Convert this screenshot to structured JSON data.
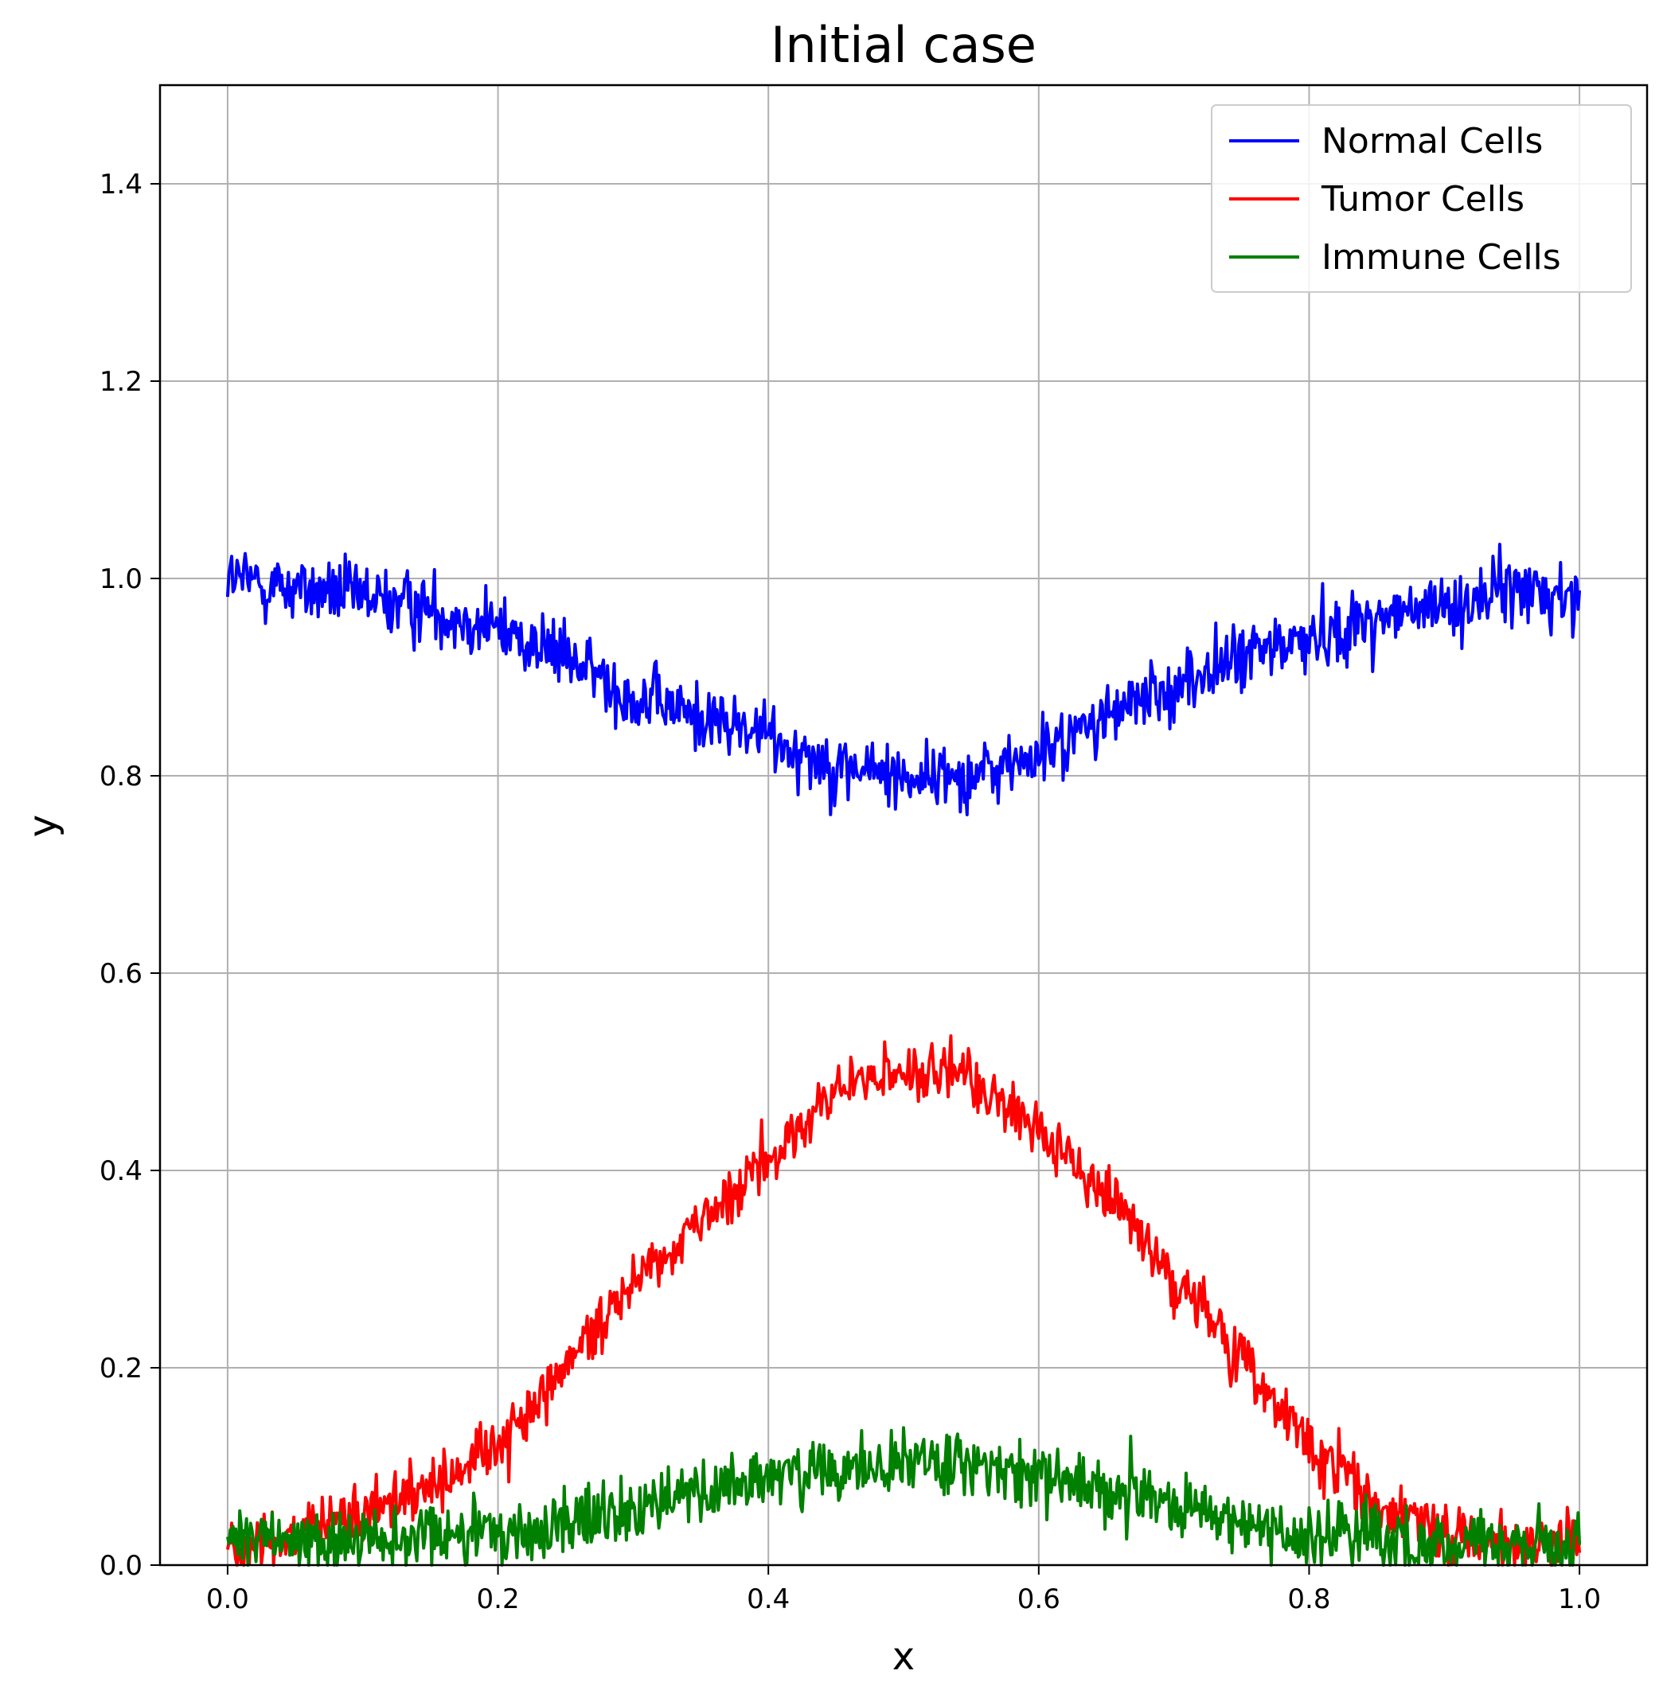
{
  "chart_data": {
    "type": "line",
    "title": "Initial case",
    "xlabel": "x",
    "ylabel": "y",
    "xlim": [
      -0.05,
      1.05
    ],
    "ylim": [
      0.0,
      1.5
    ],
    "grid": true,
    "legend_position": "top-right",
    "x_ticks": [
      "0.0",
      "0.2",
      "0.4",
      "0.6",
      "0.8",
      "1.0"
    ],
    "y_ticks": [
      "0.0",
      "0.2",
      "0.4",
      "0.6",
      "0.8",
      "1.0",
      "1.2",
      "1.4"
    ],
    "x": [
      0.0,
      0.05,
      0.1,
      0.15,
      0.2,
      0.25,
      0.3,
      0.35,
      0.4,
      0.45,
      0.5,
      0.55,
      0.6,
      0.65,
      0.7,
      0.75,
      0.8,
      0.85,
      0.9,
      0.95,
      1.0
    ],
    "series": [
      {
        "name": "Normal Cells",
        "color": "#0000ff",
        "values": [
          1.0,
          0.99,
          0.98,
          0.97,
          0.95,
          0.92,
          0.88,
          0.86,
          0.84,
          0.81,
          0.8,
          0.8,
          0.82,
          0.86,
          0.89,
          0.92,
          0.94,
          0.96,
          0.97,
          0.99,
          0.98
        ],
        "noise": 0.035
      },
      {
        "name": "Tumor Cells",
        "color": "#ff0000",
        "values": [
          0.02,
          0.03,
          0.05,
          0.08,
          0.12,
          0.2,
          0.29,
          0.35,
          0.41,
          0.48,
          0.5,
          0.49,
          0.44,
          0.38,
          0.29,
          0.21,
          0.12,
          0.06,
          0.03,
          0.02,
          0.03
        ],
        "noise": 0.03
      },
      {
        "name": "Immune Cells",
        "color": "#008000",
        "values": [
          0.02,
          0.03,
          0.02,
          0.03,
          0.03,
          0.04,
          0.06,
          0.07,
          0.09,
          0.09,
          0.11,
          0.1,
          0.09,
          0.08,
          0.06,
          0.04,
          0.03,
          0.03,
          0.02,
          0.02,
          0.02
        ],
        "noise": 0.035
      }
    ]
  }
}
